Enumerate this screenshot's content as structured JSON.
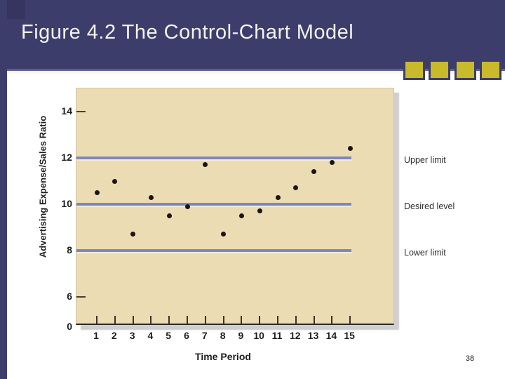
{
  "slide": {
    "title": "Figure 4.2 The Control-Chart Model",
    "page_number": "38"
  },
  "colors": {
    "header_navy": "#3d3d6b",
    "accent_square_yellow": "#c9ba2b",
    "plot_background_tan": "#ebdcb4",
    "limit_line_blue": "#7d86be",
    "data_point_black": "#1c1410"
  },
  "chart_data": {
    "type": "scatter",
    "title": "Figure 4.2 The Control-Chart Model",
    "xlabel": "Time Period",
    "ylabel": "Advertising Expense/Sales Ratio",
    "x": [
      1,
      2,
      3,
      4,
      5,
      6,
      7,
      8,
      9,
      10,
      11,
      12,
      13,
      14,
      15
    ],
    "values": [
      10.5,
      11.0,
      8.7,
      10.3,
      9.5,
      9.9,
      11.7,
      8.7,
      9.5,
      9.7,
      10.3,
      10.7,
      11.4,
      11.8,
      12.4
    ],
    "x_tick_labels": [
      "1",
      "2",
      "3",
      "4",
      "5",
      "6",
      "7",
      "8",
      "9",
      "10",
      "11",
      "12",
      "13",
      "14",
      "15"
    ],
    "y_tick_values": [
      14,
      12,
      10,
      8,
      6,
      0
    ],
    "y_tick_labels": [
      "14",
      "12",
      "10",
      "8",
      "6",
      "0"
    ],
    "y_axis_break_between": [
      6,
      0
    ],
    "xlim": [
      1,
      15
    ],
    "ylim_shown": [
      0,
      15
    ],
    "grid": false,
    "legend_position": "right-of-plot",
    "reference_lines": [
      {
        "value": 12,
        "label": "Upper limit"
      },
      {
        "value": 10,
        "label": "Desired level"
      },
      {
        "value": 8,
        "label": "Lower limit"
      }
    ]
  }
}
